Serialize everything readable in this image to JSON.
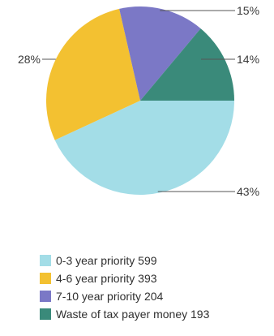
{
  "chart_data": {
    "type": "pie",
    "title": "",
    "categories": [
      "0-3 year priority",
      "4-6 year priority",
      "7-10 year priority",
      "Waste of tax payer money"
    ],
    "values": [
      599,
      393,
      204,
      193
    ],
    "percent_labels": [
      "43%",
      "28%",
      "15%",
      "14%"
    ],
    "colors": [
      "#a3dde7",
      "#f3c131",
      "#7b78c6",
      "#3a8a7a"
    ],
    "legend_position": "bottom-left",
    "legend": [
      {
        "label": "0-3 year priority",
        "count": "599"
      },
      {
        "label": "4-6 year priority",
        "count": "393"
      },
      {
        "label": "7-10 year priority",
        "count": "204"
      },
      {
        "label": "Waste of tax payer money",
        "count": "193"
      }
    ]
  }
}
